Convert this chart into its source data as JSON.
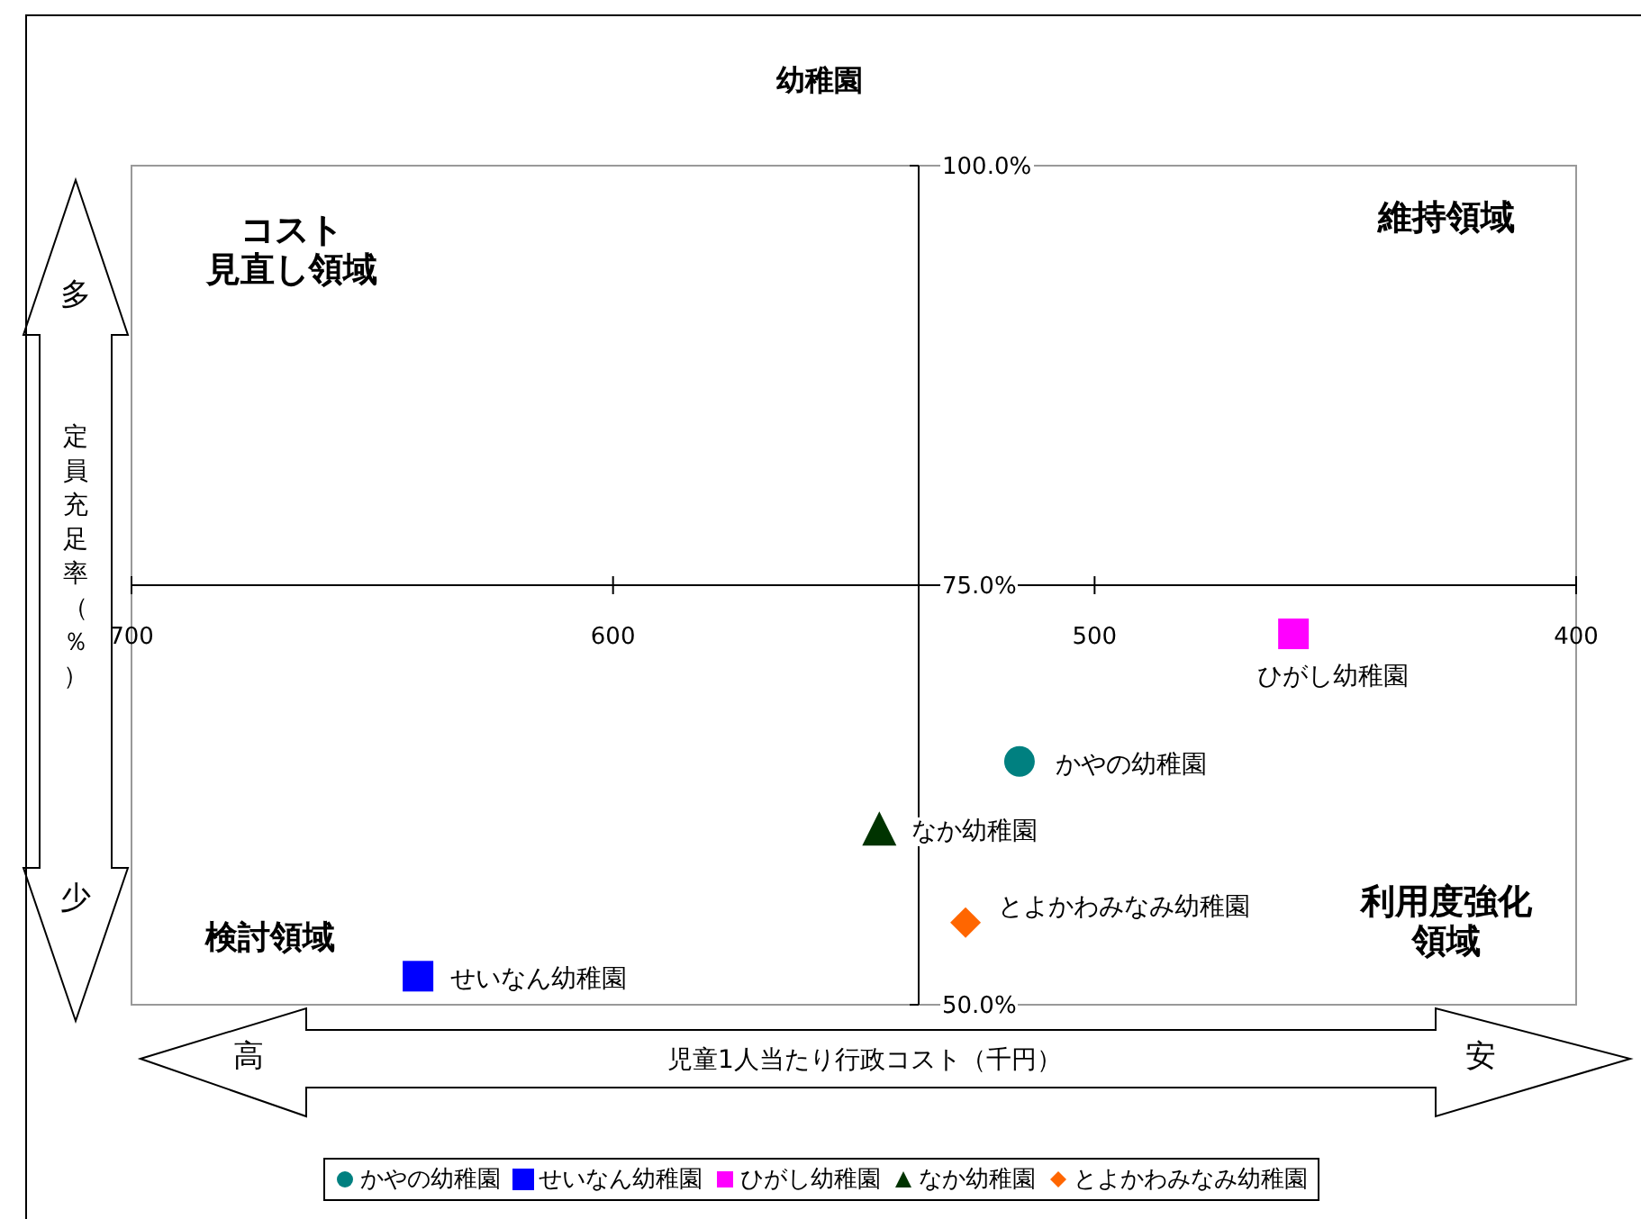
{
  "chart_data": {
    "type": "scatter",
    "title": "幼稚園",
    "xlabel": "児童1人当たり行政コスト（千円）",
    "ylabel": "定員充足率（％）",
    "xlim": [
      700,
      400
    ],
    "xticks": [
      700,
      600,
      500,
      400
    ],
    "ylim": [
      50,
      100
    ],
    "yticks": [
      {
        "value": 50,
        "label": "50.0%"
      },
      {
        "value": 75,
        "label": "75.0%"
      },
      {
        "value": 100,
        "label": "100.0%"
      }
    ],
    "series": [
      {
        "name": "かやの幼稚園",
        "color": "#008080",
        "marker": "circle",
        "x": [
          515.6
        ],
        "values": [
          64.5
        ]
      },
      {
        "name": "せいなん幼稚園",
        "color": "#0000ff",
        "marker": "square",
        "x": [
          640.5
        ],
        "values": [
          51.7
        ]
      },
      {
        "name": "ひがし幼稚園",
        "color": "#ff00ff",
        "marker": "square",
        "x": [
          458.7
        ],
        "values": [
          72.1
        ]
      },
      {
        "name": "なか幼稚園",
        "color": "#003300",
        "marker": "triangle",
        "x": [
          544.7
        ],
        "values": [
          60.5
        ]
      },
      {
        "name": "とよかわみなみ幼稚園",
        "color": "#ff6600",
        "marker": "diamond",
        "x": [
          526.8
        ],
        "values": [
          54.9
        ]
      }
    ],
    "annotations": [
      "コスト見直し領域",
      "維持領域",
      "検討領域",
      "利用度強化領域",
      "多",
      "少",
      "高",
      "安"
    ],
    "grid": false,
    "legend": "bottom"
  }
}
